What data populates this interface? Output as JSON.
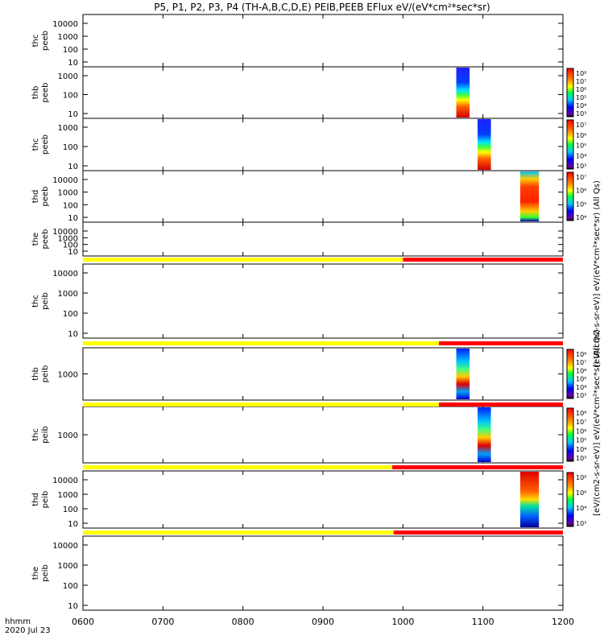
{
  "chart_data": {
    "type": "heatmap",
    "title": "P5, P1, P2, P3, P4 (TH-A,B,C,D,E) PEIB,PEEB EFlux eV/(eV*cm²*sec*sr)",
    "xlabel_line1": "hhmm",
    "xlabel_line2": "2020 Jul 23",
    "x_ticks": [
      "0600",
      "0700",
      "0800",
      "0900",
      "1000",
      "1100",
      "1200"
    ],
    "xlim": [
      "06:00",
      "12:00"
    ],
    "colorbar_label_electrons": "[eV/(cm2-s-sr-eV)] eV/(eV*cm²*sec*sr) (All Qs)",
    "colorbar_label_ions": "[eV/(cm2-s-sr-eV)] eV/(eV*cm²*sec*sr) (All Qs)",
    "colorbar_ticks": {
      "thb_peeb": [
        "10⁸",
        "10⁷",
        "10⁶",
        "10⁵",
        "10⁴",
        "10³"
      ],
      "thc_peeb": [
        "10⁷",
        "10⁶",
        "10⁵",
        "10⁴",
        "10³"
      ],
      "thd_peeb": [
        "10⁷",
        "10⁶",
        "10⁵",
        "10⁴"
      ],
      "thb_peib": [
        "10⁸",
        "10⁷",
        "10⁶",
        "10⁵",
        "10⁴",
        "10³"
      ],
      "thc_peib": [
        "10⁸",
        "10⁷",
        "10⁶",
        "10⁵",
        "10⁴",
        "10³"
      ],
      "thd_peib": [
        "10⁸",
        "10⁶",
        "10⁴",
        "10³"
      ]
    },
    "panels": [
      {
        "probe": "thc",
        "product": "peeb",
        "yticks": [
          "10000",
          "1000",
          "100",
          "10"
        ],
        "data": false
      },
      {
        "probe": "thb",
        "product": "peeb",
        "yticks": [
          "1000",
          "100",
          "10"
        ],
        "data": true,
        "time_range": [
          "10:40",
          "10:50"
        ],
        "has_colorbar": true
      },
      {
        "probe": "thc",
        "product": "peeb",
        "yticks": [
          "1000",
          "100",
          "10"
        ],
        "data": true,
        "time_range": [
          "10:56",
          "11:06"
        ],
        "has_colorbar": true
      },
      {
        "probe": "thd",
        "product": "peeb",
        "yticks": [
          "10000",
          "1000",
          "100",
          "10"
        ],
        "data": true,
        "time_range": [
          "11:28",
          "11:42"
        ],
        "has_colorbar": true
      },
      {
        "probe": "the",
        "product": "peeb",
        "yticks": [
          "10000",
          "1000",
          "100",
          "10"
        ],
        "data": false
      },
      {
        "probe": "thc",
        "product": "peib",
        "yticks": [
          "10000",
          "1000",
          "100",
          "10"
        ],
        "data": false
      },
      {
        "probe": "thb",
        "product": "peib",
        "yticks": [
          "1000"
        ],
        "data": true,
        "time_range": [
          "10:40",
          "10:50"
        ],
        "has_colorbar": true
      },
      {
        "probe": "thc",
        "product": "peib",
        "yticks": [
          "1000"
        ],
        "data": true,
        "time_range": [
          "10:56",
          "11:06"
        ],
        "has_colorbar": true
      },
      {
        "probe": "thd",
        "product": "peib",
        "yticks": [
          "10000",
          "1000",
          "100",
          "10"
        ],
        "data": true,
        "time_range": [
          "11:28",
          "11:42"
        ],
        "has_colorbar": true
      },
      {
        "probe": "the",
        "product": "peib",
        "yticks": [
          "10000",
          "1000",
          "100",
          "10"
        ],
        "data": false
      }
    ],
    "mode_bars": [
      {
        "above_panel": 5,
        "yellow_until": "10:00"
      },
      {
        "above_panel": 6,
        "yellow_until": "10:27"
      },
      {
        "above_panel": 7,
        "yellow_until": "10:27"
      },
      {
        "above_panel": 8,
        "yellow_until": "09:52"
      },
      {
        "above_panel": 9,
        "yellow_until": "09:53"
      }
    ],
    "mode_colors": {
      "slow_survey": "#ffff00",
      "fast_survey": "#ff0000"
    }
  }
}
